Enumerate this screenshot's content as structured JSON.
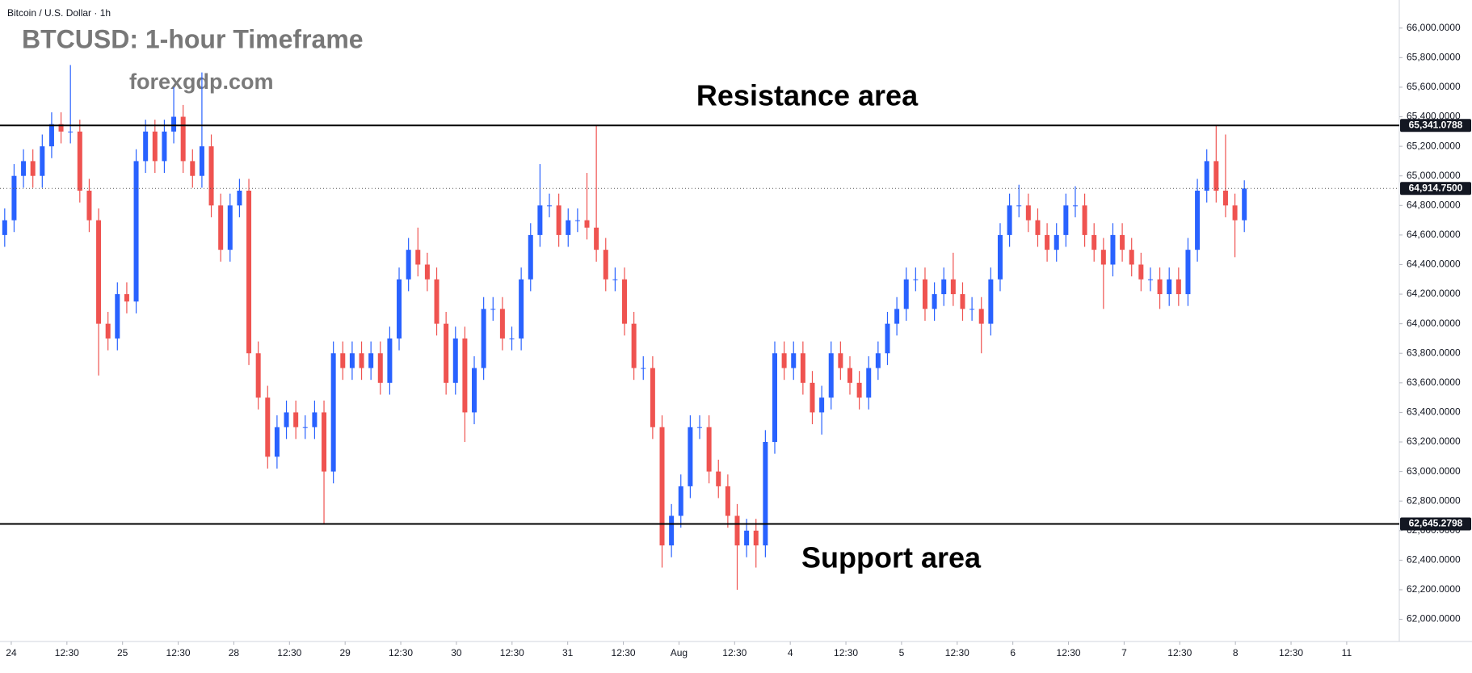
{
  "chart_data": {
    "type": "candlestick",
    "symbol": "Bitcoin / U.S. Dollar · 1h",
    "title": "BTCUSD: 1-hour Timeframe",
    "subtitle": "forexgdp.com",
    "annotations": [
      "Resistance area",
      "Support area"
    ],
    "up_color": "#2962ff",
    "down_color": "#ef5350",
    "grid": false,
    "xlim": [
      -0.5,
      148.5
    ],
    "xticks": [
      {
        "value": 0.7,
        "label": "24"
      },
      {
        "value": 6.625,
        "label": "12:30"
      },
      {
        "value": 12.55,
        "label": "25"
      },
      {
        "value": 18.475,
        "label": "12:30"
      },
      {
        "value": 24.4,
        "label": "28"
      },
      {
        "value": 30.325,
        "label": "12:30"
      },
      {
        "value": 36.25,
        "label": "29"
      },
      {
        "value": 42.175,
        "label": "12:30"
      },
      {
        "value": 48.1,
        "label": "30"
      },
      {
        "value": 54.025,
        "label": "12:30"
      },
      {
        "value": 59.95,
        "label": "31"
      },
      {
        "value": 65.875,
        "label": "12:30"
      },
      {
        "value": 71.8,
        "label": "Aug"
      },
      {
        "value": 77.725,
        "label": "12:30"
      },
      {
        "value": 83.65,
        "label": "4"
      },
      {
        "value": 89.575,
        "label": "12:30"
      },
      {
        "value": 95.5,
        "label": "5"
      },
      {
        "value": 101.425,
        "label": "12:30"
      },
      {
        "value": 107.35,
        "label": "6"
      },
      {
        "value": 113.275,
        "label": "12:30"
      },
      {
        "value": 119.2,
        "label": "7"
      },
      {
        "value": 125.125,
        "label": "12:30"
      },
      {
        "value": 131.05,
        "label": "8"
      },
      {
        "value": 136.975,
        "label": "12:30"
      },
      {
        "value": 142.9,
        "label": "11"
      }
    ],
    "ylim": [
      61850,
      66190
    ],
    "yticks": [
      {
        "value": 62000,
        "label": "62,000.0000"
      },
      {
        "value": 62200,
        "label": "62,200.0000"
      },
      {
        "value": 62400,
        "label": "62,400.0000"
      },
      {
        "value": 62600,
        "label": "62,600.0000"
      },
      {
        "value": 62800,
        "label": "62,800.0000"
      },
      {
        "value": 63000,
        "label": "63,000.0000"
      },
      {
        "value": 63200,
        "label": "63,200.0000"
      },
      {
        "value": 63400,
        "label": "63,400.0000"
      },
      {
        "value": 63600,
        "label": "63,600.0000"
      },
      {
        "value": 63800,
        "label": "63,800.0000"
      },
      {
        "value": 64000,
        "label": "64,000.0000"
      },
      {
        "value": 64200,
        "label": "64,200.0000"
      },
      {
        "value": 64400,
        "label": "64,400.0000"
      },
      {
        "value": 64600,
        "label": "64,600.0000"
      },
      {
        "value": 64800,
        "label": "64,800.0000"
      },
      {
        "value": 65000,
        "label": "65,000.0000"
      },
      {
        "value": 65200,
        "label": "65,200.0000"
      },
      {
        "value": 65400,
        "label": "65,400.0000"
      },
      {
        "value": 65600,
        "label": "65,600.0000"
      },
      {
        "value": 65800,
        "label": "65,800.0000"
      },
      {
        "value": 66000,
        "label": "66,000.0000"
      }
    ],
    "levels": [
      {
        "value": 65341.0788,
        "label": "65,341.0788",
        "style": "solid"
      },
      {
        "value": 62645.2798,
        "label": "62,645.2798",
        "style": "solid"
      },
      {
        "value": 64914.75,
        "label": "64,914.7500",
        "style": "dotted"
      }
    ],
    "open": [
      64600,
      64700,
      65000,
      65100,
      65000,
      65200,
      65350,
      65300,
      65300,
      64900,
      64700,
      64000,
      63900,
      64200,
      64150,
      65100,
      65300,
      65100,
      65300,
      65400,
      65100,
      65000,
      65200,
      64800,
      64500,
      64800,
      64900,
      63800,
      63500,
      63100,
      63300,
      63400,
      63300,
      63300,
      63400,
      63000,
      63800,
      63700,
      63800,
      63700,
      63800,
      63600,
      63900,
      64300,
      64500,
      64400,
      64300,
      64000,
      63600,
      63900,
      63400,
      63700,
      64100,
      64100,
      63900,
      63900,
      64300,
      64600,
      64800,
      64800,
      64600,
      64700,
      64700,
      64650,
      64500,
      64300,
      64300,
      64000,
      63700,
      63700,
      63300,
      62500,
      62700,
      62900,
      63300,
      63300,
      63000,
      62900,
      62700,
      62500,
      62600,
      62500,
      63200,
      63800,
      63700,
      63800,
      63600,
      63400,
      63500,
      63800,
      63700,
      63600,
      63500,
      63700,
      63800,
      64000,
      64100,
      64300,
      64300,
      64100,
      64200,
      64300,
      64200,
      64100,
      64100,
      64000,
      64300,
      64600,
      64800,
      64800,
      64700,
      64600,
      64500,
      64600,
      64800,
      64800,
      64600,
      64500,
      64400,
      64600,
      64500,
      64400,
      64300,
      64300,
      64200,
      64300,
      64200,
      64500,
      64900,
      65100,
      64900,
      64800,
      64700
    ],
    "high": [
      64780,
      65080,
      65180,
      65180,
      65280,
      65430,
      65430,
      65750,
      65380,
      64980,
      64780,
      64080,
      64280,
      64280,
      65180,
      65380,
      65380,
      65380,
      65600,
      65480,
      65180,
      65700,
      65280,
      64880,
      64880,
      64980,
      64980,
      63880,
      63580,
      63380,
      63480,
      63480,
      63380,
      63480,
      63480,
      63880,
      63880,
      63880,
      63880,
      63880,
      63880,
      63980,
      64380,
      64580,
      64650,
      64480,
      64380,
      64080,
      63980,
      63980,
      63780,
      64180,
      64180,
      64180,
      63980,
      64380,
      64680,
      65080,
      64880,
      64880,
      64780,
      64780,
      65020,
      65340,
      64580,
      64380,
      64380,
      64080,
      63780,
      63780,
      63380,
      62780,
      62980,
      63380,
      63380,
      63380,
      63080,
      62980,
      62780,
      62680,
      62680,
      63280,
      63880,
      63880,
      63880,
      63880,
      63680,
      63580,
      63880,
      63880,
      63780,
      63680,
      63780,
      63880,
      64080,
      64180,
      64380,
      64380,
      64380,
      64280,
      64380,
      64480,
      64280,
      64180,
      64180,
      64380,
      64680,
      64880,
      64940,
      64880,
      64780,
      64680,
      64680,
      64880,
      64930,
      64880,
      64680,
      64580,
      64680,
      64680,
      64580,
      64480,
      64380,
      64380,
      64380,
      64380,
      64580,
      64980,
      65180,
      65340,
      65280,
      64880,
      64970
    ],
    "low": [
      64520,
      64620,
      64920,
      64920,
      64920,
      65120,
      65220,
      65220,
      64820,
      64620,
      63650,
      63820,
      63820,
      64070,
      64070,
      65020,
      65020,
      65020,
      65220,
      65020,
      64920,
      64920,
      64720,
      64420,
      64420,
      64720,
      63720,
      63420,
      63020,
      63020,
      63220,
      63220,
      63220,
      63220,
      62650,
      62920,
      63620,
      63620,
      63620,
      63620,
      63520,
      63520,
      63820,
      64220,
      64320,
      64220,
      63920,
      63520,
      63520,
      63200,
      63320,
      63620,
      64020,
      63820,
      63820,
      63820,
      64220,
      64520,
      64720,
      64520,
      64520,
      64620,
      64570,
      64420,
      64220,
      64220,
      63920,
      63620,
      63620,
      63220,
      62350,
      62420,
      62620,
      62820,
      63220,
      62920,
      62820,
      62620,
      62200,
      62420,
      62350,
      62420,
      63120,
      63620,
      63620,
      63520,
      63320,
      63250,
      63420,
      63620,
      63520,
      63420,
      63420,
      63620,
      63720,
      63920,
      64020,
      64220,
      64020,
      64020,
      64120,
      64120,
      64020,
      64020,
      63800,
      63920,
      64220,
      64520,
      64720,
      64620,
      64520,
      64420,
      64420,
      64520,
      64720,
      64520,
      64420,
      64100,
      64320,
      64420,
      64320,
      64220,
      64220,
      64100,
      64120,
      64120,
      64120,
      64420,
      64820,
      64820,
      64720,
      64450,
      64620
    ],
    "close": [
      64700,
      65000,
      65100,
      65000,
      65200,
      65350,
      65300,
      65300,
      64900,
      64700,
      64000,
      63900,
      64200,
      64150,
      65100,
      65300,
      65100,
      65300,
      65400,
      65100,
      65000,
      65200,
      64800,
      64500,
      64800,
      64900,
      63800,
      63500,
      63100,
      63300,
      63400,
      63300,
      63300,
      63400,
      63000,
      63800,
      63700,
      63800,
      63700,
      63800,
      63600,
      63900,
      64300,
      64500,
      64400,
      64300,
      64000,
      63600,
      63900,
      63400,
      63700,
      64100,
      64100,
      63900,
      63900,
      64300,
      64600,
      64800,
      64800,
      64600,
      64700,
      64700,
      64650,
      64500,
      64300,
      64300,
      64000,
      63700,
      63700,
      63300,
      62500,
      62700,
      62900,
      63300,
      63300,
      63000,
      62900,
      62700,
      62500,
      62600,
      62500,
      63200,
      63800,
      63700,
      63800,
      63600,
      63400,
      63500,
      63800,
      63700,
      63600,
      63500,
      63700,
      63800,
      64000,
      64100,
      64300,
      64300,
      64100,
      64200,
      64300,
      64200,
      64100,
      64100,
      64000,
      64300,
      64600,
      64800,
      64800,
      64700,
      64600,
      64500,
      64600,
      64800,
      64800,
      64600,
      64500,
      64400,
      64600,
      64500,
      64400,
      64300,
      64300,
      64200,
      64300,
      64200,
      64500,
      64900,
      65100,
      64900,
      64800,
      64700,
      64914.75
    ]
  }
}
